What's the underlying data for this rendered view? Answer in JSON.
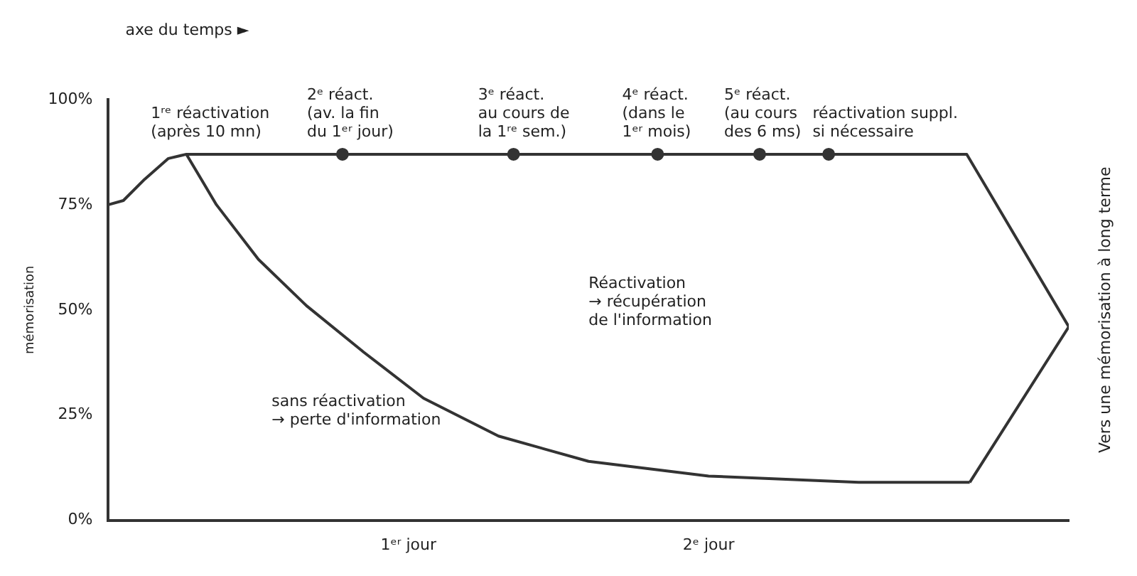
{
  "chart_data": {
    "type": "line",
    "ylabel": "mémorisation",
    "xlim": [
      0,
      3.2
    ],
    "xticks": [
      {
        "value": 1,
        "label": "1ᵉʳ jour"
      },
      {
        "value": 2,
        "label": "2ᵉ jour"
      }
    ],
    "ylim": [
      0,
      100
    ],
    "yticks": [
      {
        "value": 0,
        "label": "0%"
      },
      {
        "value": 25,
        "label": "25%"
      },
      {
        "value": 50,
        "label": "50%"
      },
      {
        "value": 75,
        "label": "75%"
      },
      {
        "value": 100,
        "label": "100%"
      }
    ],
    "grid": false,
    "marker": "none",
    "line_style": "solid",
    "series": [
      {
        "color": "#333333",
        "x": [
          0,
          0.05,
          0.12,
          0.2,
          0.26,
          2.86,
          3.2,
          2.87
        ],
        "values": [
          75,
          76,
          81,
          86,
          87,
          87,
          46,
          9
        ]
      },
      {
        "color": "#333333",
        "x": [
          0.26,
          0.36,
          0.5,
          0.66,
          0.85,
          1.05,
          1.3,
          1.6,
          2.0,
          2.5,
          2.87
        ],
        "values": [
          87,
          75,
          62,
          51,
          40,
          29,
          20,
          14,
          10.5,
          9,
          9
        ]
      },
      {
        "type": "scatter",
        "marker": "circle",
        "color": "#333333",
        "x": [
          0.78,
          1.35,
          1.83,
          2.17,
          2.4
        ],
        "values": [
          87,
          87,
          87,
          87,
          87
        ]
      }
    ],
    "annotations": [
      "axe du temps ►",
      "Vers une mémorisation à long terme",
      "Réactivation\n→ récupération\nde l'information",
      "sans réactivation\n→ perte d'information",
      {
        "text": "1ʳᵉ réactivation\n(après 10 mn)",
        "x": 0.26,
        "y": 87
      },
      {
        "text": "2ᵉ réact.\n(av. la fin\ndu 1ᵉʳ jour)",
        "x": 0.78,
        "y": 87
      },
      {
        "text": "3ᵉ réact.\nau cours de\nla 1ʳᵉ sem.)",
        "x": 1.35,
        "y": 87
      },
      {
        "text": "4ᵉ réact.\n(dans le\n1ᵉʳ mois)",
        "x": 1.83,
        "y": 87
      },
      {
        "text": "5ᵉ réact.\n(au cours\ndes 6 ms)",
        "x": 2.17,
        "y": 87
      },
      {
        "text": "réactivation suppl.\nsi nécessaire",
        "x": 2.4,
        "y": 87
      }
    ]
  }
}
